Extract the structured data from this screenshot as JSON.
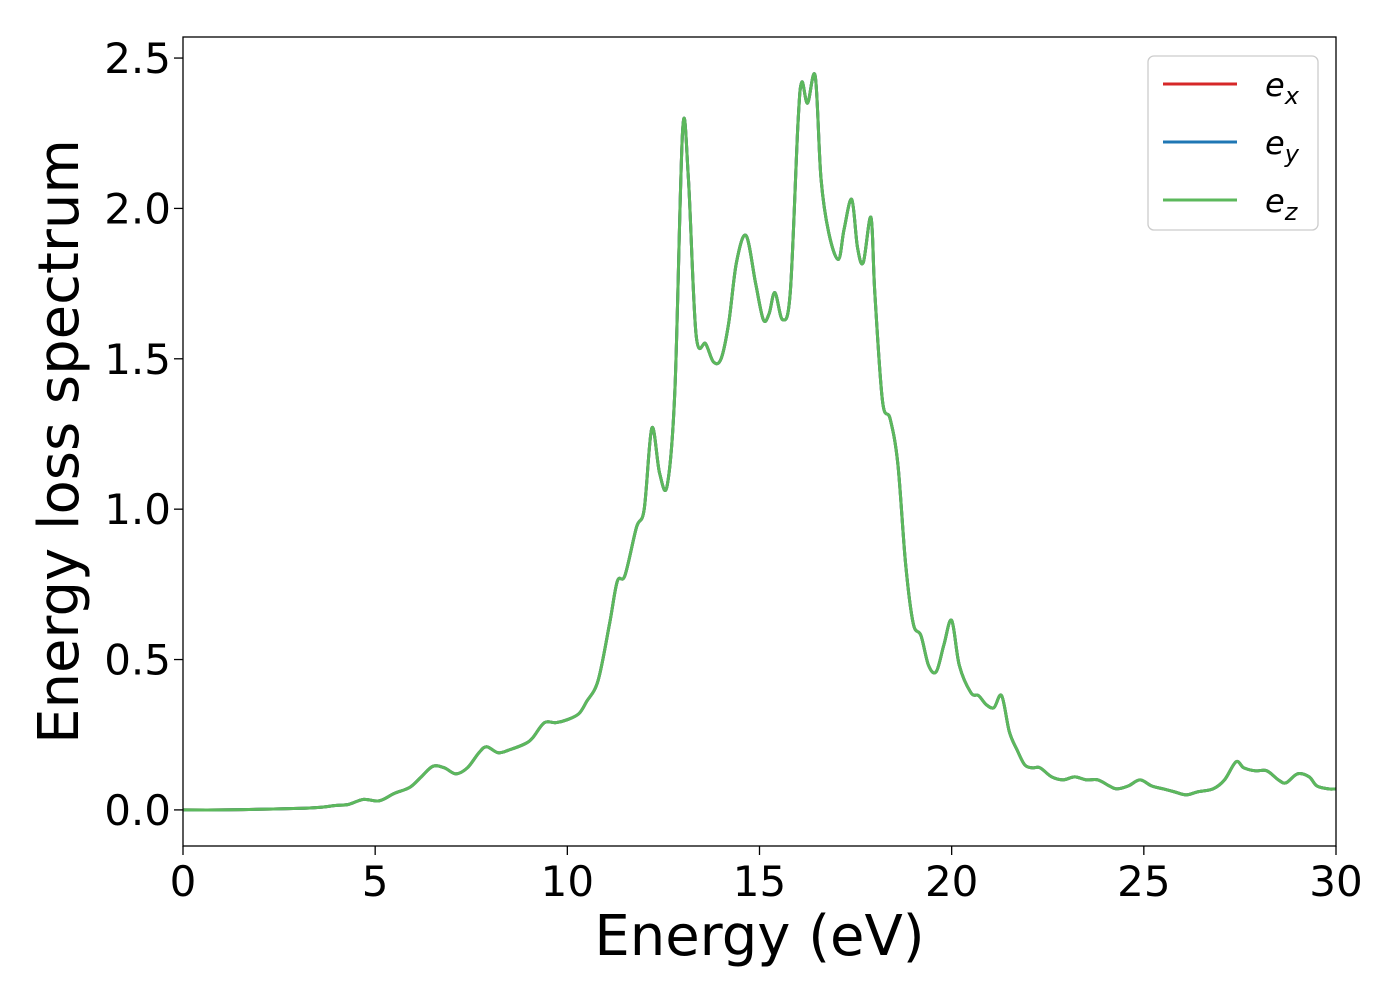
{
  "chart_data": {
    "type": "line",
    "title": "",
    "xlabel": "Energy (eV)",
    "ylabel": "Energy loss spectrum",
    "xlim": [
      0,
      30
    ],
    "ylim": [
      -0.12,
      2.57
    ],
    "xticks": [
      0,
      5,
      10,
      15,
      20,
      25,
      30
    ],
    "xtick_labels": [
      "0",
      "5",
      "10",
      "15",
      "20",
      "25",
      "30"
    ],
    "yticks": [
      0.0,
      0.5,
      1.0,
      1.5,
      2.0,
      2.5
    ],
    "ytick_labels": [
      "0.0",
      "0.5",
      "1.0",
      "1.5",
      "2.0",
      "2.5"
    ],
    "grid": false,
    "legend_position": "top-right",
    "x": [
      0,
      1,
      2,
      3,
      3.5,
      4,
      4.3,
      4.7,
      5.1,
      5.5,
      5.9,
      6.2,
      6.5,
      6.8,
      7.1,
      7.4,
      7.7,
      7.9,
      8.2,
      8.5,
      8.9,
      9.1,
      9.4,
      9.7,
      10.0,
      10.3,
      10.5,
      10.8,
      11.1,
      11.3,
      11.5,
      11.8,
      12.0,
      12.2,
      12.4,
      12.6,
      12.8,
      13.0,
      13.15,
      13.35,
      13.6,
      13.8,
      14.0,
      14.2,
      14.4,
      14.65,
      14.9,
      15.1,
      15.25,
      15.4,
      15.6,
      15.8,
      16.0,
      16.1,
      16.25,
      16.45,
      16.6,
      16.8,
      17.05,
      17.2,
      17.4,
      17.55,
      17.7,
      17.9,
      18.0,
      18.2,
      18.4,
      18.6,
      18.8,
      19.0,
      19.2,
      19.4,
      19.6,
      19.8,
      20.0,
      20.2,
      20.5,
      20.7,
      20.9,
      21.1,
      21.3,
      21.5,
      21.7,
      21.9,
      22.1,
      22.3,
      22.6,
      22.9,
      23.2,
      23.5,
      23.8,
      24.1,
      24.3,
      24.6,
      24.9,
      25.2,
      25.5,
      25.8,
      26.1,
      26.4,
      26.8,
      27.1,
      27.4,
      27.6,
      27.9,
      28.2,
      28.5,
      28.7,
      29.0,
      29.3,
      29.5,
      29.8,
      30.0
    ],
    "series": [
      {
        "name": "e_x",
        "label_main": "e",
        "label_sub": "x",
        "color": "#d62728",
        "values": [
          0.0,
          0.0,
          0.002,
          0.005,
          0.008,
          0.015,
          0.018,
          0.035,
          0.03,
          0.055,
          0.075,
          0.11,
          0.145,
          0.14,
          0.12,
          0.14,
          0.19,
          0.21,
          0.19,
          0.2,
          0.22,
          0.24,
          0.29,
          0.29,
          0.3,
          0.32,
          0.36,
          0.43,
          0.62,
          0.76,
          0.78,
          0.94,
          1.0,
          1.27,
          1.12,
          1.08,
          1.4,
          2.26,
          2.1,
          1.58,
          1.55,
          1.49,
          1.5,
          1.62,
          1.82,
          1.91,
          1.75,
          1.63,
          1.65,
          1.72,
          1.63,
          1.72,
          2.28,
          2.42,
          2.35,
          2.44,
          2.1,
          1.92,
          1.83,
          1.93,
          2.03,
          1.87,
          1.82,
          1.97,
          1.72,
          1.36,
          1.3,
          1.15,
          0.82,
          0.62,
          0.58,
          0.48,
          0.46,
          0.55,
          0.63,
          0.48,
          0.39,
          0.38,
          0.35,
          0.34,
          0.38,
          0.26,
          0.2,
          0.15,
          0.14,
          0.14,
          0.11,
          0.1,
          0.11,
          0.1,
          0.1,
          0.08,
          0.07,
          0.08,
          0.1,
          0.08,
          0.07,
          0.06,
          0.05,
          0.06,
          0.07,
          0.1,
          0.16,
          0.14,
          0.13,
          0.13,
          0.1,
          0.09,
          0.12,
          0.11,
          0.08,
          0.07,
          0.07
        ]
      },
      {
        "name": "e_y",
        "label_main": "e",
        "label_sub": "y",
        "color": "#1f77b4",
        "values": [
          0.0,
          0.0,
          0.002,
          0.005,
          0.008,
          0.015,
          0.018,
          0.035,
          0.03,
          0.055,
          0.075,
          0.11,
          0.145,
          0.14,
          0.12,
          0.14,
          0.19,
          0.21,
          0.19,
          0.2,
          0.22,
          0.24,
          0.29,
          0.29,
          0.3,
          0.32,
          0.36,
          0.43,
          0.62,
          0.76,
          0.78,
          0.94,
          1.0,
          1.27,
          1.12,
          1.08,
          1.4,
          2.26,
          2.1,
          1.58,
          1.55,
          1.49,
          1.5,
          1.62,
          1.82,
          1.91,
          1.75,
          1.63,
          1.65,
          1.72,
          1.63,
          1.72,
          2.28,
          2.42,
          2.35,
          2.44,
          2.1,
          1.92,
          1.83,
          1.93,
          2.03,
          1.87,
          1.82,
          1.97,
          1.72,
          1.36,
          1.3,
          1.15,
          0.82,
          0.62,
          0.58,
          0.48,
          0.46,
          0.55,
          0.63,
          0.48,
          0.39,
          0.38,
          0.35,
          0.34,
          0.38,
          0.26,
          0.2,
          0.15,
          0.14,
          0.14,
          0.11,
          0.1,
          0.11,
          0.1,
          0.1,
          0.08,
          0.07,
          0.08,
          0.1,
          0.08,
          0.07,
          0.06,
          0.05,
          0.06,
          0.07,
          0.1,
          0.16,
          0.14,
          0.13,
          0.13,
          0.1,
          0.09,
          0.12,
          0.11,
          0.08,
          0.07,
          0.07
        ]
      },
      {
        "name": "e_z",
        "label_main": "e",
        "label_sub": "z",
        "color": "#5cb85c",
        "values": [
          0.0,
          0.0,
          0.002,
          0.005,
          0.008,
          0.015,
          0.018,
          0.035,
          0.03,
          0.055,
          0.075,
          0.11,
          0.145,
          0.14,
          0.12,
          0.14,
          0.19,
          0.21,
          0.19,
          0.2,
          0.22,
          0.24,
          0.29,
          0.29,
          0.3,
          0.32,
          0.36,
          0.43,
          0.62,
          0.76,
          0.78,
          0.94,
          1.0,
          1.27,
          1.12,
          1.08,
          1.4,
          2.26,
          2.1,
          1.58,
          1.55,
          1.49,
          1.5,
          1.62,
          1.82,
          1.91,
          1.75,
          1.63,
          1.65,
          1.72,
          1.63,
          1.72,
          2.28,
          2.42,
          2.35,
          2.44,
          2.1,
          1.92,
          1.83,
          1.93,
          2.03,
          1.87,
          1.82,
          1.97,
          1.72,
          1.36,
          1.3,
          1.15,
          0.82,
          0.62,
          0.58,
          0.48,
          0.46,
          0.55,
          0.63,
          0.48,
          0.39,
          0.38,
          0.35,
          0.34,
          0.38,
          0.26,
          0.2,
          0.15,
          0.14,
          0.14,
          0.11,
          0.1,
          0.11,
          0.1,
          0.1,
          0.08,
          0.07,
          0.08,
          0.1,
          0.08,
          0.07,
          0.06,
          0.05,
          0.06,
          0.07,
          0.1,
          0.16,
          0.14,
          0.13,
          0.13,
          0.1,
          0.09,
          0.12,
          0.11,
          0.08,
          0.07,
          0.07
        ]
      }
    ]
  }
}
